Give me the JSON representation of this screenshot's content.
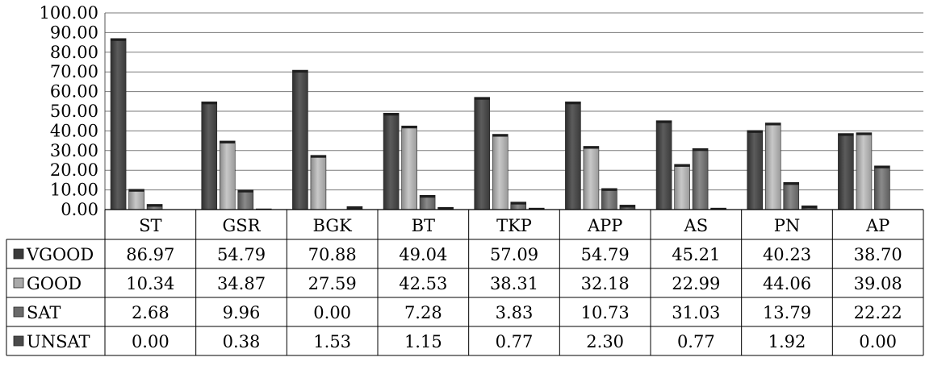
{
  "chart_data": {
    "type": "bar",
    "categories": [
      "ST",
      "GSR",
      "BGK",
      "BT",
      "TKP",
      "APP",
      "AS",
      "PN",
      "AP"
    ],
    "series": [
      {
        "name": "VGOOD",
        "values": [
          86.97,
          54.79,
          70.88,
          49.04,
          57.09,
          54.79,
          45.21,
          40.23,
          38.7
        ],
        "labels": [
          "86.97",
          "54.79",
          "70.88",
          "49.04",
          "57.09",
          "54.79",
          "45.21",
          "40.23",
          "38.70"
        ],
        "color": "#4a4a4a"
      },
      {
        "name": "GOOD",
        "values": [
          10.34,
          34.87,
          27.59,
          42.53,
          38.31,
          32.18,
          22.99,
          44.06,
          39.08
        ],
        "labels": [
          "10.34",
          "34.87",
          "27.59",
          "42.53",
          "38.31",
          "32.18",
          "22.99",
          "44.06",
          "39.08"
        ],
        "color": "#a9a9a9"
      },
      {
        "name": "SAT",
        "values": [
          2.68,
          9.96,
          0.0,
          7.28,
          3.83,
          10.73,
          31.03,
          13.79,
          22.22
        ],
        "labels": [
          "2.68",
          "9.96",
          "0.00",
          "7.28",
          "3.83",
          "10.73",
          "31.03",
          "13.79",
          "22.22"
        ],
        "color": "#6f6f6f"
      },
      {
        "name": "UNSAT",
        "values": [
          0.0,
          0.38,
          1.53,
          1.15,
          0.77,
          2.3,
          0.77,
          1.92,
          0.0
        ],
        "labels": [
          "0.00",
          "0.38",
          "1.53",
          "1.15",
          "0.77",
          "2.30",
          "0.77",
          "1.92",
          "0.00"
        ],
        "color": "#5a5a5a"
      }
    ],
    "yticks": [
      "0.00",
      "10.00",
      "20.00",
      "30.00",
      "40.00",
      "50.00",
      "60.00",
      "70.00",
      "80.00",
      "90.00",
      "100.00"
    ],
    "ylim": [
      0,
      100
    ],
    "grid": true,
    "legend": "data-table",
    "title": "",
    "xlabel": "",
    "ylabel": ""
  }
}
